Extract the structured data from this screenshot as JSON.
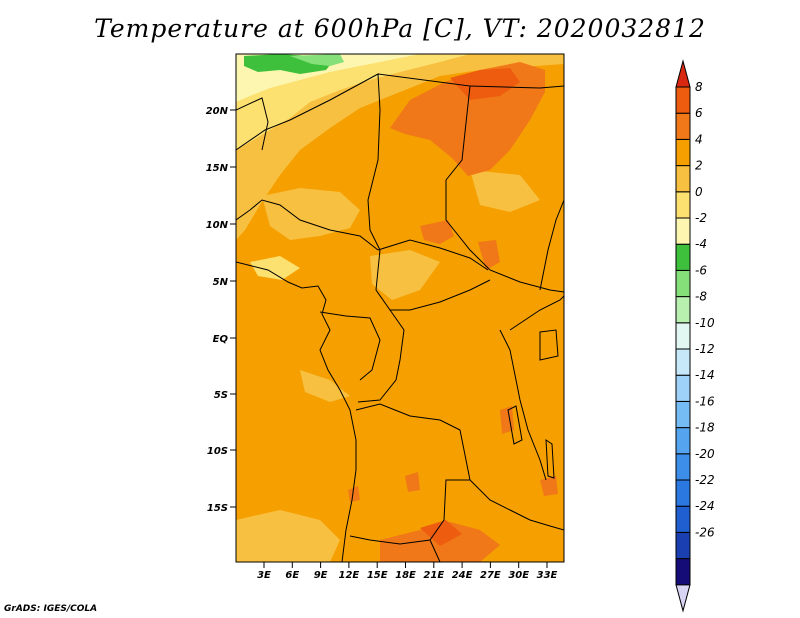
{
  "title": "Temperature at 600hPa [C], VT: 2020032812",
  "credit": "GrADS: IGES/COLA",
  "map": {
    "lat_labels": [
      "20N",
      "15N",
      "10N",
      "5N",
      "EQ",
      "5S",
      "10S",
      "15S"
    ],
    "lon_labels": [
      "3E",
      "6E",
      "9E",
      "12E",
      "15E",
      "18E",
      "21E",
      "24E",
      "27E",
      "30E",
      "33E"
    ],
    "dominant_fill": "#f5a000"
  },
  "colorbar": {
    "labels": [
      "8",
      "6",
      "4",
      "2",
      "0",
      "-2",
      "-4",
      "-6",
      "-8",
      "-10",
      "-12",
      "-14",
      "-16",
      "-18",
      "-20",
      "-22",
      "-24",
      "-26"
    ],
    "colors": [
      "#d8d4f4",
      "#150c78",
      "#1a3fb0",
      "#1f5fd0",
      "#2a78e0",
      "#3c8ee8",
      "#55a4f0",
      "#75bcf4",
      "#9ed2f8",
      "#c6e8f8",
      "#e2f6f2",
      "#b8f0b0",
      "#86e07a",
      "#3ec03c",
      "#fcf6b0",
      "#fce070",
      "#f8c040",
      "#f5a000",
      "#f07818",
      "#ee5c10",
      "#d82810"
    ]
  }
}
